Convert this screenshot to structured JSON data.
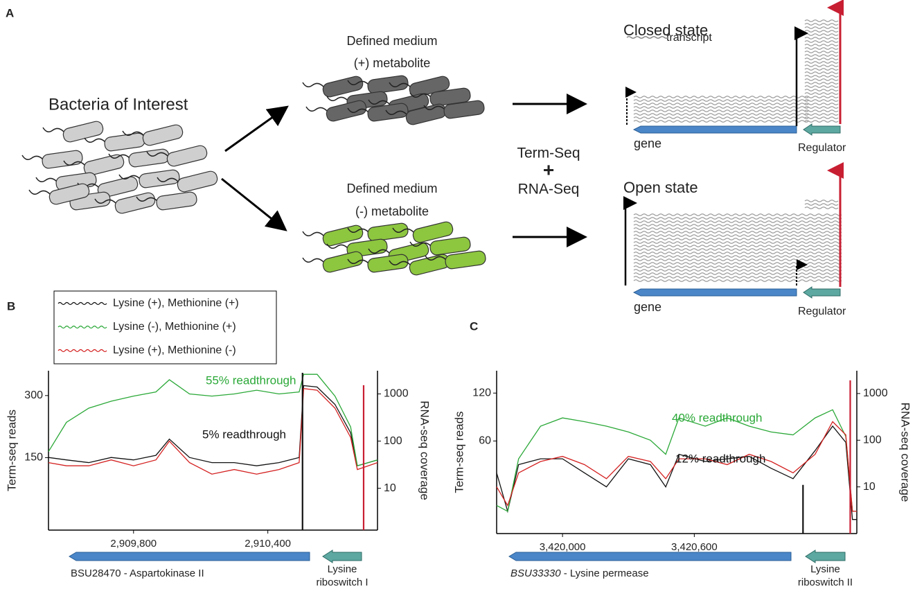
{
  "panel_a": {
    "label": "A",
    "bacteria": "Bacteria of Interest",
    "plus_medium": "Defined medium",
    "plus_metabolite": "(+) metabolite",
    "minus_medium": "Defined medium",
    "minus_metabolite": "(-) metabolite",
    "method_1": "Term-Seq",
    "method_join": "+",
    "method_2": "RNA-Seq",
    "closed_state": "Closed state",
    "transcript": "transcript",
    "closed_gene": "gene",
    "closed_regulator": "Regulator",
    "open_state": "Open state",
    "open_gene": "gene",
    "open_regulator": "Regulator"
  },
  "chart_data": [
    {
      "type": "line",
      "panel": "B",
      "y_label": "Term-seq reads",
      "y2_label": "RNA-seq coverage",
      "x": [
        2909420,
        2909500,
        2909600,
        2909700,
        2909800,
        2909900,
        2909960,
        2910050,
        2910150,
        2910250,
        2910350,
        2910450,
        2910540,
        2910560,
        2910620,
        2910700,
        2910770,
        2910800,
        2910890
      ],
      "series": [
        {
          "name": "Lysine (+), Methionine (+)",
          "color": "#111111",
          "axis": "y2",
          "values": [
            45,
            40,
            35,
            45,
            40,
            50,
            110,
            45,
            35,
            35,
            30,
            35,
            45,
            1500,
            1400,
            600,
            150,
            30,
            40
          ]
        },
        {
          "name": "Lysine (-), Methionine (+)",
          "color": "#2aa837",
          "axis": "y2",
          "values": [
            60,
            250,
            500,
            700,
            900,
            1100,
            2000,
            1000,
            900,
            1000,
            1200,
            1000,
            1100,
            2600,
            2600,
            900,
            200,
            30,
            40
          ]
        },
        {
          "name": "Lysine (+), Methionine (-)",
          "color": "#d42020",
          "axis": "y2",
          "values": [
            35,
            30,
            30,
            40,
            30,
            40,
            100,
            35,
            20,
            25,
            20,
            25,
            35,
            1300,
            1200,
            500,
            120,
            25,
            35
          ]
        }
      ],
      "bars": [
        {
          "x": 2910555,
          "value": 355,
          "color": "#111111"
        },
        {
          "x": 2910828,
          "value": 325,
          "color": "#c81e32"
        }
      ],
      "xlim": [
        2909420,
        2910890
      ],
      "xticks": [
        {
          "value": 2909800,
          "label": "2,909,800"
        },
        {
          "value": 2910400,
          "label": "2,910,400"
        }
      ],
      "ylim": [
        -25,
        360
      ],
      "yticks": [
        150,
        300
      ],
      "y2lim": [
        1.3,
        3100
      ],
      "y2ticks": [
        10,
        100,
        1000
      ],
      "y2_log": true,
      "annotations": [
        {
          "text": "55% readthrough",
          "color": "#2aa837"
        },
        {
          "text": "5% readthrough",
          "color": "#111111"
        }
      ],
      "gene_label": "BSU28470 - Aspartokinase II",
      "regulator_label": [
        "Lysine",
        "riboswitch I"
      ]
    },
    {
      "type": "line",
      "panel": "C",
      "y_label": "Term-seq reads",
      "y2_label": "RNA-seq coverage",
      "x": [
        3419700,
        3419750,
        3419800,
        3419900,
        3420000,
        3420100,
        3420200,
        3420300,
        3420400,
        3420470,
        3420530,
        3420650,
        3420750,
        3420850,
        3420950,
        3421050,
        3421150,
        3421230,
        3421290,
        3421320,
        3421340
      ],
      "series": [
        {
          "color": "#111111",
          "axis": "y2",
          "values": [
            20,
            3,
            30,
            40,
            40,
            20,
            10,
            40,
            30,
            10,
            50,
            35,
            40,
            45,
            25,
            15,
            60,
            200,
            90,
            2,
            2
          ]
        },
        {
          "color": "#2aa837",
          "axis": "y2",
          "values": [
            4,
            3,
            40,
            200,
            300,
            250,
            200,
            150,
            100,
            50,
            300,
            200,
            300,
            200,
            150,
            130,
            300,
            450,
            120,
            3,
            3
          ]
        },
        {
          "color": "#d42020",
          "axis": "y2",
          "values": [
            10,
            4,
            20,
            35,
            45,
            30,
            15,
            45,
            35,
            15,
            40,
            40,
            30,
            50,
            35,
            20,
            50,
            250,
            130,
            3,
            3
          ]
        }
      ],
      "bars": [
        {
          "x": 3421095,
          "value": 5,
          "color": "#111111"
        },
        {
          "x": 3421310,
          "value": 136,
          "color": "#c81e32"
        }
      ],
      "xlim": [
        3419700,
        3421340
      ],
      "xticks": [
        {
          "value": 3420000,
          "label": "3,420,000"
        },
        {
          "value": 3420600,
          "label": "3,420,600"
        }
      ],
      "ylim": [
        -56,
        148
      ],
      "yticks": [
        60,
        120
      ],
      "y2lim": [
        1,
        3080
      ],
      "y2ticks": [
        10,
        100,
        1000
      ],
      "y2_log": true,
      "annotations": [
        {
          "text": "40% readthrough",
          "color": "#2aa837"
        },
        {
          "text": "12% readthrough",
          "color": "#111111"
        }
      ],
      "gene_label_italic": "BSU33330",
      "gene_label": " - Lysine permease",
      "regulator_label": [
        "Lysine",
        "riboswitch II"
      ]
    }
  ]
}
